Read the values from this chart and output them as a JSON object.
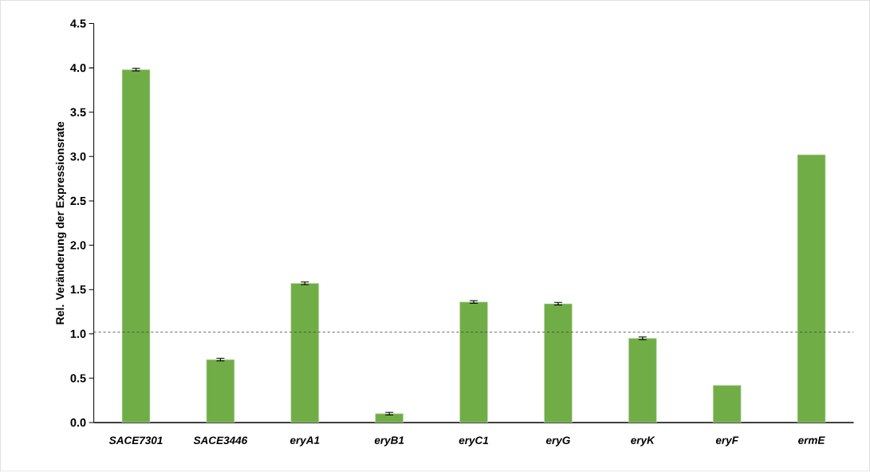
{
  "chart_data": {
    "type": "bar",
    "ylabel": "Rel. Veränderung der Expressionsrate",
    "categories": [
      "*SACE7301*",
      "*SACE3446*",
      "*eryA1*",
      "*eryB1*",
      "*eryC1*",
      "*eryG*",
      "*eryK*",
      "*eryF*",
      "*ermE*"
    ],
    "values": [
      3.98,
      0.71,
      1.57,
      0.1,
      1.36,
      1.34,
      0.95,
      0.42,
      3.02
    ],
    "errors": [
      0.015,
      0.015,
      0.015,
      0.015,
      0.015,
      0.015,
      0.015,
      null,
      null
    ],
    "color": "#70ad47",
    "ylim": [
      0,
      4.5
    ],
    "yticks": [
      {
        "value": 0,
        "label": "0.0"
      },
      {
        "value": 0.5,
        "label": "0.5"
      },
      {
        "value": 1,
        "label": "1.0"
      },
      {
        "value": 1.5,
        "label": "1.5"
      },
      {
        "value": 2,
        "label": "2.0"
      },
      {
        "value": 2.5,
        "label": "2.5"
      },
      {
        "value": 3,
        "label": "3.0"
      },
      {
        "value": 3.5,
        "label": "3.5"
      },
      {
        "value": 4,
        "label": "4.0"
      },
      {
        "value": 4.5,
        "label": "4.5"
      }
    ],
    "ref_lines": [
      {
        "axis": "y",
        "value": 1.02,
        "color": "#404040",
        "line_style": "dashed"
      }
    ],
    "grid": false
  }
}
